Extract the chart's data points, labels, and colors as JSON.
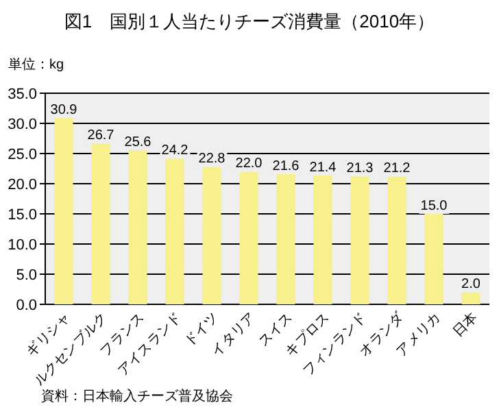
{
  "chart_data": {
    "type": "bar",
    "title": "図1　国別１人当たりチーズ消費量（2010年）",
    "ylabel": "単位：kg",
    "categories": [
      "ギリシャ",
      "ルクセンブルク",
      "フランス",
      "アイスランド",
      "ドイツ",
      "イタリア",
      "スイス",
      "キプロス",
      "フィンランド",
      "オランダ",
      "アメリカ",
      "日本"
    ],
    "values": [
      30.9,
      26.7,
      25.6,
      24.2,
      22.8,
      22.0,
      21.6,
      21.4,
      21.3,
      21.2,
      15.0,
      2.0
    ],
    "value_labels": [
      "30.9",
      "26.7",
      "25.6",
      "24.2",
      "22.8",
      "22.0",
      "21.6",
      "21.4",
      "21.3",
      "21.2",
      "15.0",
      "2.0"
    ],
    "color": "#f7f08c",
    "ylim": [
      0,
      35
    ],
    "yticks": [
      {
        "value": 0,
        "label": "0.0"
      },
      {
        "value": 5,
        "label": "5.0"
      },
      {
        "value": 10,
        "label": "10.0"
      },
      {
        "value": 15,
        "label": "15.0"
      },
      {
        "value": 20,
        "label": "20.0"
      },
      {
        "value": 25,
        "label": "25.0"
      },
      {
        "value": 30,
        "label": "30.0"
      },
      {
        "value": 35,
        "label": "35.0"
      }
    ],
    "grid": "y",
    "annotations": [
      "資料：日本輸入チーズ普及協会"
    ]
  }
}
